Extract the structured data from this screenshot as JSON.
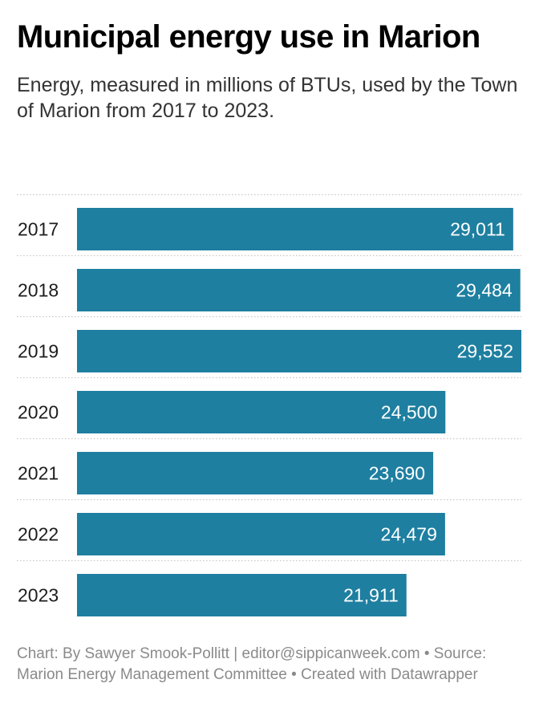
{
  "header": {
    "title": "Municipal energy use in Marion",
    "subtitle": "Energy, measured in millions of BTUs, used by the Town of Marion from 2017 to 2023."
  },
  "chart_data": {
    "type": "bar",
    "orientation": "horizontal",
    "title": "Municipal energy use in Marion",
    "subtitle": "Energy, measured in millions of BTUs, used by the Town of Marion from 2017 to 2023.",
    "categories": [
      "2017",
      "2018",
      "2019",
      "2020",
      "2021",
      "2022",
      "2023"
    ],
    "values": [
      29011,
      29484,
      29552,
      24500,
      23690,
      24479,
      21911
    ],
    "value_labels": [
      "29,011",
      "29,484",
      "29,552",
      "24,500",
      "23,690",
      "24,479",
      "21,911"
    ],
    "xlim": [
      0,
      29552
    ],
    "bar_color": "#1e7fa0",
    "label_color": "#ffffff",
    "grid": "dotted row separators",
    "legend": "none"
  },
  "footer": {
    "credit": "Chart: By Sawyer Smook-Pollitt | editor@sippicanweek.com • Source: Marion Energy Management Committee • Created with Datawrapper"
  }
}
